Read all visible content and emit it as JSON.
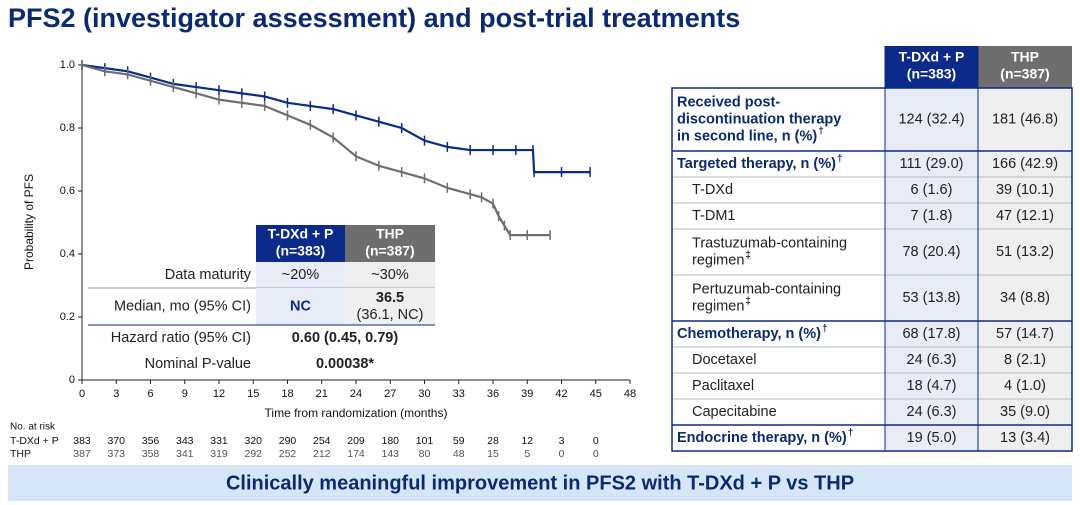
{
  "title": "PFS2 (investigator assessment) and post-trial treatments",
  "chart_data": {
    "type": "line",
    "y_label": "Probability of PFS",
    "x_label": "Time from randomization (months)",
    "xlim": [
      0,
      48
    ],
    "xticks": [
      0,
      3,
      6,
      9,
      12,
      15,
      18,
      21,
      24,
      27,
      30,
      33,
      36,
      39,
      42,
      45,
      48
    ],
    "ylim": [
      0,
      1
    ],
    "yticks": [
      0,
      0.2,
      0.4,
      0.6,
      0.8,
      {
        "value": 1,
        "label": "1.0"
      }
    ],
    "series": [
      {
        "name": "T-DXd + P",
        "color": "#0b2a8a",
        "x": [
          0,
          2,
          4,
          6,
          8,
          10,
          12,
          14,
          16,
          18,
          20,
          22,
          24,
          26,
          28,
          30,
          32,
          34,
          36,
          38,
          39.5,
          39.6,
          42,
          44.5
        ],
        "values": [
          1,
          0.99,
          0.98,
          0.96,
          0.94,
          0.93,
          0.92,
          0.91,
          0.9,
          0.88,
          0.87,
          0.86,
          0.84,
          0.82,
          0.8,
          0.76,
          0.74,
          0.73,
          0.73,
          0.73,
          0.73,
          0.66,
          0.66,
          0.66
        ]
      },
      {
        "name": "THP",
        "color": "#6e6e6e",
        "x": [
          0,
          2,
          4,
          6,
          8,
          10,
          12,
          14,
          16,
          18,
          20,
          22,
          24,
          26,
          28,
          30,
          32,
          34,
          35,
          36,
          36.5,
          37,
          37.5,
          39,
          41
        ],
        "values": [
          1,
          0.98,
          0.97,
          0.95,
          0.93,
          0.91,
          0.89,
          0.88,
          0.87,
          0.84,
          0.81,
          0.77,
          0.71,
          0.68,
          0.66,
          0.64,
          0.61,
          0.59,
          0.58,
          0.56,
          0.52,
          0.49,
          0.46,
          0.46,
          0.46
        ]
      }
    ],
    "risk_table": {
      "title": "No. at risk",
      "rows": [
        {
          "name": "T-DXd + P",
          "values": [
            383,
            370,
            356,
            343,
            331,
            320,
            290,
            254,
            209,
            180,
            101,
            59,
            28,
            12,
            3,
            0
          ]
        },
        {
          "name": "THP",
          "values": [
            387,
            373,
            358,
            341,
            319,
            292,
            252,
            212,
            174,
            143,
            80,
            48,
            15,
            5,
            0,
            0
          ]
        }
      ]
    }
  },
  "inset_table": {
    "columns": [
      [
        "T-DXd + P",
        "(n=383)"
      ],
      [
        "THP",
        "(n=387)"
      ]
    ],
    "rows": [
      {
        "label": "Data maturity",
        "bold": false,
        "cells": [
          [
            "~20%"
          ],
          [
            "~30%"
          ]
        ]
      },
      {
        "label": "Median, mo (95% CI)",
        "bold": true,
        "cells": [
          [
            "NC"
          ],
          [
            "36.5",
            "(36.1, NC)"
          ]
        ]
      },
      {
        "label": "Hazard ratio (95% CI)",
        "bold": true,
        "span": "0.60 (0.45, 0.79)"
      },
      {
        "label": "Nominal P-value",
        "bold": true,
        "span": "0.00038*"
      }
    ]
  },
  "treatment_table": {
    "columns": [
      [
        "T-DXd + P",
        "(n=383)"
      ],
      [
        "THP",
        "(n=387)"
      ]
    ],
    "rows": [
      {
        "label": [
          "Received post-",
          "discontinuation therapy",
          "in second line, n (%)"
        ],
        "sup": "†",
        "bold": true,
        "cells": [
          "124 (32.4)",
          "181 (46.8)"
        ]
      },
      {
        "label": [
          "Targeted therapy, n (%)"
        ],
        "sup": "†",
        "bold": true,
        "cells": [
          "111 (29.0)",
          "166 (42.9)"
        ]
      },
      {
        "label": [
          "T-DXd"
        ],
        "bold": false,
        "cells": [
          "6 (1.6)",
          "39 (10.1)"
        ]
      },
      {
        "label": [
          "T-DM1"
        ],
        "bold": false,
        "cells": [
          "7 (1.8)",
          "47 (12.1)"
        ]
      },
      {
        "label": [
          "Trastuzumab-containing",
          "regimen"
        ],
        "sup": "‡",
        "bold": false,
        "cells": [
          "78 (20.4)",
          "51 (13.2)"
        ]
      },
      {
        "label": [
          "Pertuzumab-containing",
          "regimen"
        ],
        "sup": "‡",
        "bold": false,
        "cells": [
          "53 (13.8)",
          "34 (8.8)"
        ]
      },
      {
        "label": [
          "Chemotherapy, n (%)"
        ],
        "sup": "†",
        "bold": true,
        "cells": [
          "68 (17.8)",
          "57 (14.7)"
        ]
      },
      {
        "label": [
          "Docetaxel"
        ],
        "bold": false,
        "cells": [
          "24 (6.3)",
          "8 (2.1)"
        ]
      },
      {
        "label": [
          "Paclitaxel"
        ],
        "bold": false,
        "cells": [
          "18 (4.7)",
          "4 (1.0)"
        ]
      },
      {
        "label": [
          "Capecitabine"
        ],
        "bold": false,
        "cells": [
          "24 (6.3)",
          "35 (9.0)"
        ]
      },
      {
        "label": [
          "Endocrine therapy, n (%)"
        ],
        "sup": "†",
        "bold": true,
        "cells": [
          "19 (5.0)",
          "13 (3.4)"
        ]
      }
    ]
  },
  "banner": "Clinically meaningful improvement in PFS2 with T-DXd + P vs THP"
}
